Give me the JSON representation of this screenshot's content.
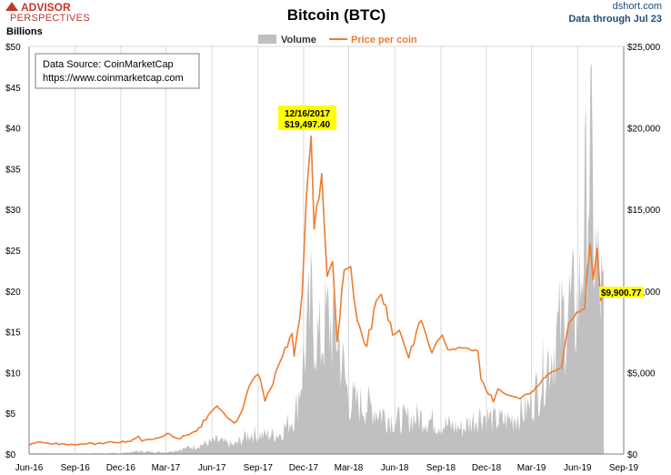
{
  "header": {
    "logo_line1": "ADVISOR",
    "logo_line2": "PERSPECTIVES",
    "site": "dshort.com",
    "data_through": "Data through Jul 23"
  },
  "chart_data": {
    "type": "area+line",
    "title": "Bitcoin (BTC)",
    "ylabel_left": "Billions",
    "ylabel_right": "",
    "xlabel": "",
    "legend": {
      "placement": "top-center",
      "items": [
        "Volume",
        "Price per coin"
      ]
    },
    "source_box": [
      "Data Source: CoinMarketCap",
      "https://www.coinmarketcap.com"
    ],
    "x_ticks": [
      "Jun-16",
      "Sep-16",
      "Dec-16",
      "Mar-17",
      "Jun-17",
      "Sep-17",
      "Dec-17",
      "Mar-18",
      "Jun-18",
      "Sep-18",
      "Dec-18",
      "Mar-19",
      "Jun-19",
      "Sep-19"
    ],
    "xlim": [
      "2016-06-01",
      "2019-09-01"
    ],
    "y_left": {
      "min": 0,
      "max": 50,
      "ticks": [
        "$0",
        "$5",
        "$10",
        "$15",
        "$20",
        "$25",
        "$30",
        "$35",
        "$40",
        "$45",
        "$50"
      ]
    },
    "y_right": {
      "min": 0,
      "max": 25000,
      "ticks": [
        "$0",
        "$5,000",
        "$10,000",
        "$15,000",
        "$20,000",
        "$25,000"
      ]
    },
    "grid": "vertical",
    "colors": {
      "volume": "#c0c0c0",
      "price": "#ed7d31",
      "highlight": "#ffff00",
      "axis": "#7f7f7f",
      "grid": "#d9d9d9"
    },
    "annotations": [
      {
        "date": "2017-12-16",
        "value": 19497.4,
        "label_date": "12/16/2017",
        "label_value": "$19,497.40"
      },
      {
        "date": "2019-07-23",
        "value": 9900.77,
        "label_value": "$9,900.77"
      }
    ],
    "series": [
      {
        "name": "Price per coin",
        "axis": "right",
        "points": [
          [
            "2016-06-01",
            540
          ],
          [
            "2016-06-18",
            740
          ],
          [
            "2016-07-10",
            660
          ],
          [
            "2016-08-15",
            580
          ],
          [
            "2016-09-15",
            610
          ],
          [
            "2016-10-15",
            640
          ],
          [
            "2016-11-15",
            730
          ],
          [
            "2016-12-15",
            780
          ],
          [
            "2016-12-31",
            960
          ],
          [
            "2017-01-05",
            1100
          ],
          [
            "2017-01-12",
            790
          ],
          [
            "2017-02-15",
            1000
          ],
          [
            "2017-03-03",
            1260
          ],
          [
            "2017-03-25",
            950
          ],
          [
            "2017-04-15",
            1180
          ],
          [
            "2017-05-01",
            1400
          ],
          [
            "2017-05-25",
            2400
          ],
          [
            "2017-06-11",
            2950
          ],
          [
            "2017-06-25",
            2500
          ],
          [
            "2017-07-16",
            1900
          ],
          [
            "2017-08-01",
            2700
          ],
          [
            "2017-08-15",
            4200
          ],
          [
            "2017-09-01",
            4900
          ],
          [
            "2017-09-15",
            3250
          ],
          [
            "2017-10-01",
            4300
          ],
          [
            "2017-10-20",
            6000
          ],
          [
            "2017-11-08",
            7400
          ],
          [
            "2017-11-12",
            6000
          ],
          [
            "2017-11-28",
            9800
          ],
          [
            "2017-12-07",
            16000
          ],
          [
            "2017-12-16",
            19497
          ],
          [
            "2017-12-22",
            13800
          ],
          [
            "2018-01-06",
            17200
          ],
          [
            "2018-01-17",
            10900
          ],
          [
            "2018-01-28",
            11800
          ],
          [
            "2018-02-06",
            6900
          ],
          [
            "2018-02-20",
            11300
          ],
          [
            "2018-03-05",
            11500
          ],
          [
            "2018-03-18",
            8200
          ],
          [
            "2018-04-06",
            6600
          ],
          [
            "2018-04-25",
            9400
          ],
          [
            "2018-05-05",
            9800
          ],
          [
            "2018-05-28",
            7300
          ],
          [
            "2018-06-10",
            7600
          ],
          [
            "2018-06-29",
            5900
          ],
          [
            "2018-07-24",
            8200
          ],
          [
            "2018-08-14",
            6200
          ],
          [
            "2018-09-04",
            7300
          ],
          [
            "2018-09-15",
            6400
          ],
          [
            "2018-10-15",
            6500
          ],
          [
            "2018-11-14",
            6300
          ],
          [
            "2018-11-20",
            4600
          ],
          [
            "2018-12-15",
            3200
          ],
          [
            "2018-12-24",
            4000
          ],
          [
            "2019-01-15",
            3600
          ],
          [
            "2019-02-07",
            3400
          ],
          [
            "2019-03-01",
            3800
          ],
          [
            "2019-04-02",
            4900
          ],
          [
            "2019-04-30",
            5300
          ],
          [
            "2019-05-14",
            8000
          ],
          [
            "2019-05-30",
            8700
          ],
          [
            "2019-06-15",
            8900
          ],
          [
            "2019-06-26",
            12900
          ],
          [
            "2019-07-02",
            10700
          ],
          [
            "2019-07-10",
            12600
          ],
          [
            "2019-07-17",
            9400
          ],
          [
            "2019-07-23",
            9900
          ]
        ]
      },
      {
        "name": "Volume",
        "axis": "left",
        "points": [
          [
            "2016-06-01",
            0.12
          ],
          [
            "2016-09-01",
            0.08
          ],
          [
            "2016-12-01",
            0.12
          ],
          [
            "2017-01-05",
            0.4
          ],
          [
            "2017-03-01",
            0.25
          ],
          [
            "2017-05-01",
            1.2
          ],
          [
            "2017-06-11",
            2.0
          ],
          [
            "2017-07-15",
            1.3
          ],
          [
            "2017-08-15",
            3.0
          ],
          [
            "2017-09-15",
            2.8
          ],
          [
            "2017-10-15",
            3.0
          ],
          [
            "2017-11-15",
            6.0
          ],
          [
            "2017-12-01",
            14.0
          ],
          [
            "2017-12-16",
            22.0
          ],
          [
            "2018-01-01",
            16.0
          ],
          [
            "2018-01-17",
            20.0
          ],
          [
            "2018-02-06",
            18.0
          ],
          [
            "2018-03-01",
            8.0
          ],
          [
            "2018-04-15",
            7.0
          ],
          [
            "2018-06-01",
            5.0
          ],
          [
            "2018-07-24",
            5.5
          ],
          [
            "2018-09-01",
            4.5
          ],
          [
            "2018-10-15",
            3.8
          ],
          [
            "2018-11-20",
            6.0
          ],
          [
            "2018-12-15",
            5.0
          ],
          [
            "2019-01-15",
            5.0
          ],
          [
            "2019-02-25",
            7.0
          ],
          [
            "2019-03-15",
            10.0
          ],
          [
            "2019-04-02",
            14.0
          ],
          [
            "2019-05-14",
            22.0
          ],
          [
            "2019-06-01",
            21.0
          ],
          [
            "2019-06-26",
            45.0
          ],
          [
            "2019-07-05",
            30.0
          ],
          [
            "2019-07-23",
            21.0
          ]
        ]
      }
    ]
  }
}
